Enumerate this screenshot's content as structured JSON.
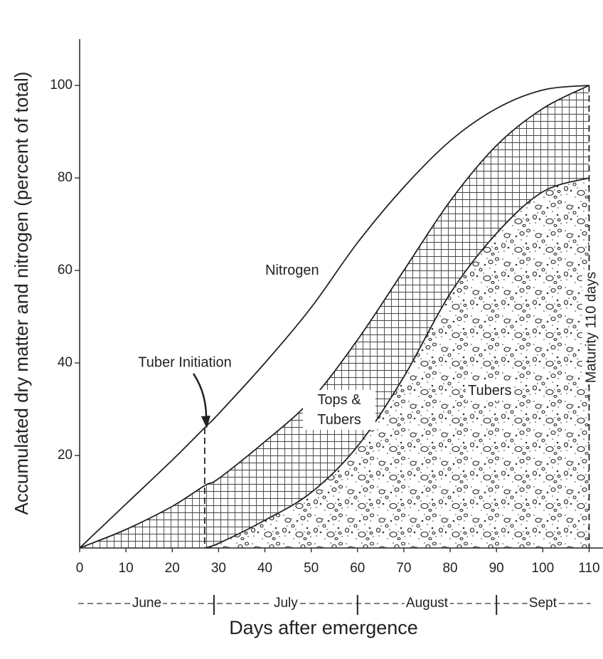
{
  "chart_data": {
    "type": "area",
    "x_label": "Days after emergence",
    "y_label": "Accumulated dry matter and nitrogen (percent of total)",
    "x": [
      0,
      10,
      20,
      27,
      30,
      40,
      50,
      60,
      70,
      80,
      90,
      100,
      110
    ],
    "series": [
      {
        "name": "Nitrogen",
        "color": "#222222",
        "fill": "none",
        "values": [
          0,
          9.5,
          19,
          26,
          29,
          40,
          52,
          66,
          78,
          88,
          95,
          99,
          100
        ]
      },
      {
        "name": "Tops & Tubers",
        "color": "#222222",
        "fill": "hatch",
        "values": [
          0,
          4,
          9,
          13.5,
          15,
          23,
          32,
          45,
          60,
          75,
          87,
          95,
          100
        ]
      },
      {
        "name": "Tubers",
        "color": "#222222",
        "fill": "stipple",
        "values": [
          null,
          null,
          null,
          0,
          1,
          6,
          12,
          22,
          37,
          55,
          68,
          77,
          80
        ]
      }
    ],
    "xlim": [
      0,
      113
    ],
    "ylim": [
      0,
      110
    ],
    "xticks": [
      0,
      10,
      20,
      30,
      40,
      50,
      60,
      70,
      80,
      90,
      100,
      110
    ],
    "yticks": [
      20,
      40,
      60,
      80,
      100
    ],
    "months": [
      "June",
      "July",
      "August",
      "Sept"
    ],
    "month_bounds": [
      29,
      60,
      90
    ],
    "annotations": [
      {
        "text": "Tuber Initiation",
        "x": 27
      },
      {
        "text": "Maturity 110 days",
        "x": 110
      }
    ]
  }
}
